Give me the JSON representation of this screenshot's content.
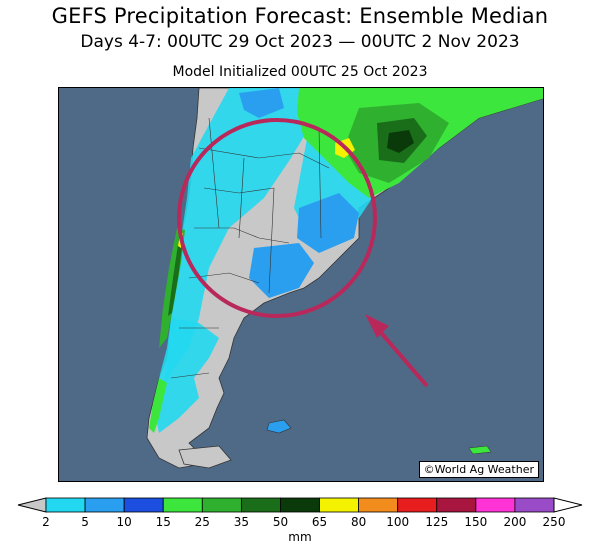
{
  "header": {
    "title": "GEFS Precipitation Forecast: Ensemble Median",
    "subtitle": "Days 4-7: 00UTC 29 Oct 2023 — 00UTC 2 Nov 2023",
    "init": "Model Initialized 00UTC 25 Oct 2023"
  },
  "credit": "©World Ag Weather",
  "legend": {
    "unit": "mm",
    "ticks": [
      "2",
      "5",
      "10",
      "15",
      "25",
      "35",
      "50",
      "65",
      "80",
      "100",
      "125",
      "150",
      "200",
      "250"
    ],
    "colors": [
      "#c8c8c8",
      "#22d8f0",
      "#2a9ff0",
      "#1c4fe0",
      "#3de63d",
      "#2fb02f",
      "#1a6e1a",
      "#0a3a0a",
      "#f5f200",
      "#f28c1c",
      "#e81e1e",
      "#a81640",
      "#ff33d6",
      "#9a4cc8"
    ]
  },
  "map": {
    "ocean_color": "#4f6a86",
    "land_dry_color": "#c8c8c8",
    "annotation_color": "#b8285a"
  }
}
